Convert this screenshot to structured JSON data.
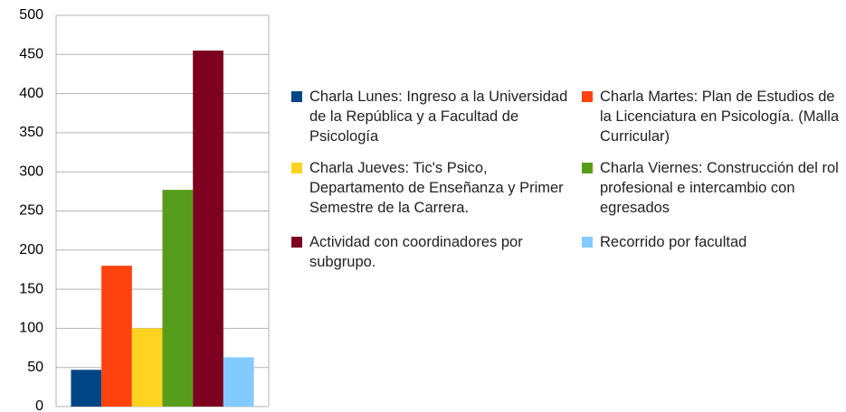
{
  "chart_data": {
    "type": "bar",
    "categories": [
      null
    ],
    "series": [
      {
        "name": "Charla Lunes: Ingreso a la Universidad de la República y a Facultad de Psicología",
        "color": "#004586",
        "values": [
          47
        ]
      },
      {
        "name": "Charla Martes: Plan de Estudios de la Licenciatura en Psicología. (Malla Curricular)",
        "color": "#ff420e",
        "values": [
          180
        ]
      },
      {
        "name": "Charla Jueves: Tic's Psico, Departamento de Enseñanza y Primer Semestre de la Carrera.",
        "color": "#ffd320",
        "values": [
          100
        ]
      },
      {
        "name": "Charla Viernes: Construcción del rol profesional e intercambio con egresados",
        "color": "#579d1c",
        "values": [
          277
        ]
      },
      {
        "name": "Actividad con coordinadores por subgrupo.",
        "color": "#7e0021",
        "values": [
          455
        ]
      },
      {
        "name": "Recorrido por facultad",
        "color": "#83caff",
        "values": [
          63
        ]
      }
    ],
    "ylim": [
      0,
      500
    ],
    "yticks": [
      0,
      50,
      100,
      150,
      200,
      250,
      300,
      350,
      400,
      450,
      500
    ],
    "grid": true,
    "legend": "right"
  }
}
